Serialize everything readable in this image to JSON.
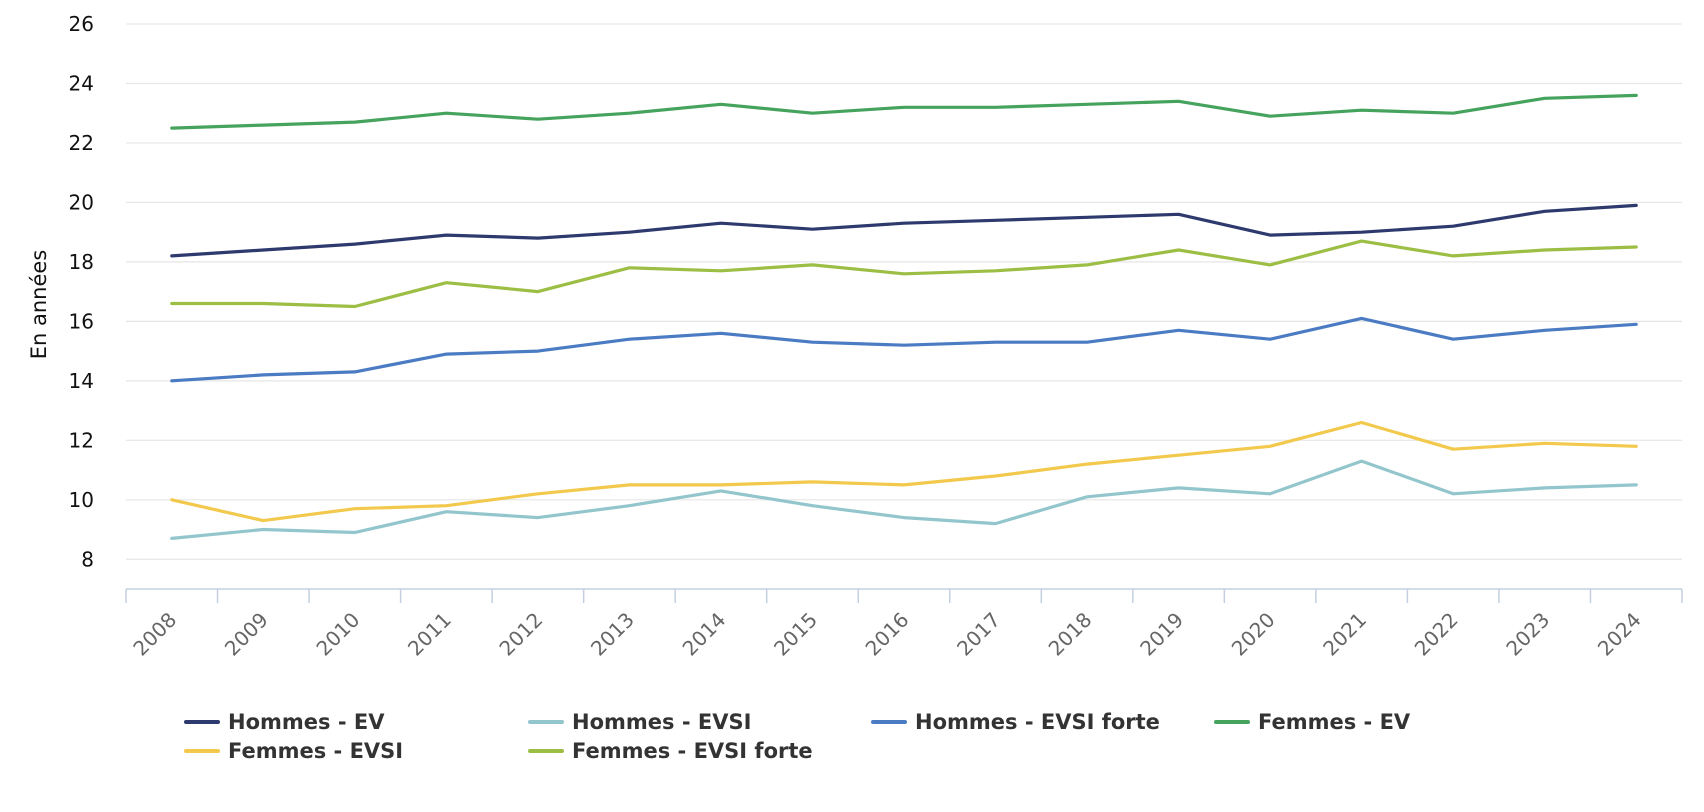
{
  "chart_data": {
    "type": "line",
    "title": "",
    "xlabel": "",
    "ylabel": "En années",
    "ylim": [
      7,
      26
    ],
    "yticks": [
      8,
      10,
      12,
      14,
      16,
      18,
      20,
      22,
      24,
      26
    ],
    "grid": true,
    "legend_position": "bottom",
    "x": [
      "2008",
      "2009",
      "2010",
      "2011",
      "2012",
      "2013",
      "2014",
      "2015",
      "2016",
      "2017",
      "2018",
      "2019",
      "2020",
      "2021",
      "2022",
      "2023",
      "2024"
    ],
    "series": [
      {
        "name": "Hommes - EV",
        "color": "#2e3a6e",
        "values": [
          18.2,
          18.4,
          18.6,
          18.9,
          18.8,
          19.0,
          19.3,
          19.1,
          19.3,
          19.4,
          19.5,
          19.6,
          18.9,
          19.0,
          19.2,
          19.7,
          19.9
        ]
      },
      {
        "name": "Hommes - EVSI",
        "color": "#93c6cc",
        "values": [
          8.7,
          9.0,
          8.9,
          9.6,
          9.4,
          9.8,
          10.3,
          9.8,
          9.4,
          9.2,
          10.1,
          10.4,
          10.2,
          11.3,
          10.2,
          10.4,
          10.5
        ]
      },
      {
        "name": "Hommes - EVSI forte",
        "color": "#4b7cc3",
        "values": [
          14.0,
          14.2,
          14.3,
          14.9,
          15.0,
          15.4,
          15.6,
          15.3,
          15.2,
          15.3,
          15.3,
          15.7,
          15.4,
          16.1,
          15.4,
          15.7,
          15.9
        ]
      },
      {
        "name": "Femmes - EV",
        "color": "#45a35e",
        "values": [
          22.5,
          22.6,
          22.7,
          23.0,
          22.8,
          23.0,
          23.3,
          23.0,
          23.2,
          23.2,
          23.3,
          23.4,
          22.9,
          23.1,
          23.0,
          23.5,
          23.6
        ]
      },
      {
        "name": "Femmes - EVSI",
        "color": "#f2c94c",
        "values": [
          10.0,
          9.3,
          9.7,
          9.8,
          10.2,
          10.5,
          10.5,
          10.6,
          10.5,
          10.8,
          11.2,
          11.5,
          11.8,
          12.6,
          11.7,
          11.9,
          11.8
        ]
      },
      {
        "name": "Femmes - EVSI forte",
        "color": "#9dbe45",
        "values": [
          16.6,
          16.6,
          16.5,
          17.3,
          17.0,
          17.8,
          17.7,
          17.9,
          17.6,
          17.7,
          17.9,
          18.4,
          17.9,
          18.7,
          18.2,
          18.4,
          18.5
        ]
      }
    ]
  }
}
